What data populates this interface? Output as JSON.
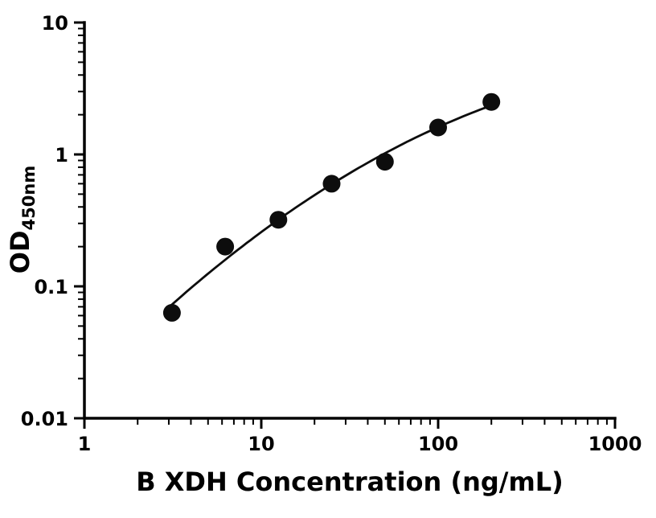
{
  "chart_data": {
    "type": "scatter",
    "title": "",
    "xlabel": "B XDH Concentration (ng/mL)",
    "ylabel_main": "OD",
    "ylabel_sub": "450nm",
    "xscale": "log",
    "yscale": "log",
    "xlim": [
      1,
      1000
    ],
    "ylim": [
      0.01,
      10
    ],
    "x": [
      3.125,
      6.25,
      12.5,
      25,
      50,
      100,
      200
    ],
    "y": [
      0.063,
      0.2,
      0.32,
      0.6,
      0.88,
      1.6,
      2.5
    ],
    "x_ticks": [
      {
        "value": 1,
        "label": "1"
      },
      {
        "value": 10,
        "label": "10"
      },
      {
        "value": 100,
        "label": "100"
      },
      {
        "value": 1000,
        "label": "1000"
      }
    ],
    "y_ticks": [
      {
        "value": 0.01,
        "label": "0.01"
      },
      {
        "value": 0.1,
        "label": "0.1"
      },
      {
        "value": 1,
        "label": "1"
      },
      {
        "value": 10,
        "label": "10"
      }
    ],
    "grid": false,
    "legend": false,
    "has_fit_curve": true,
    "marker_color": "#0d0d0d",
    "line_color": "#0d0d0d",
    "axis_color": "#000000"
  }
}
